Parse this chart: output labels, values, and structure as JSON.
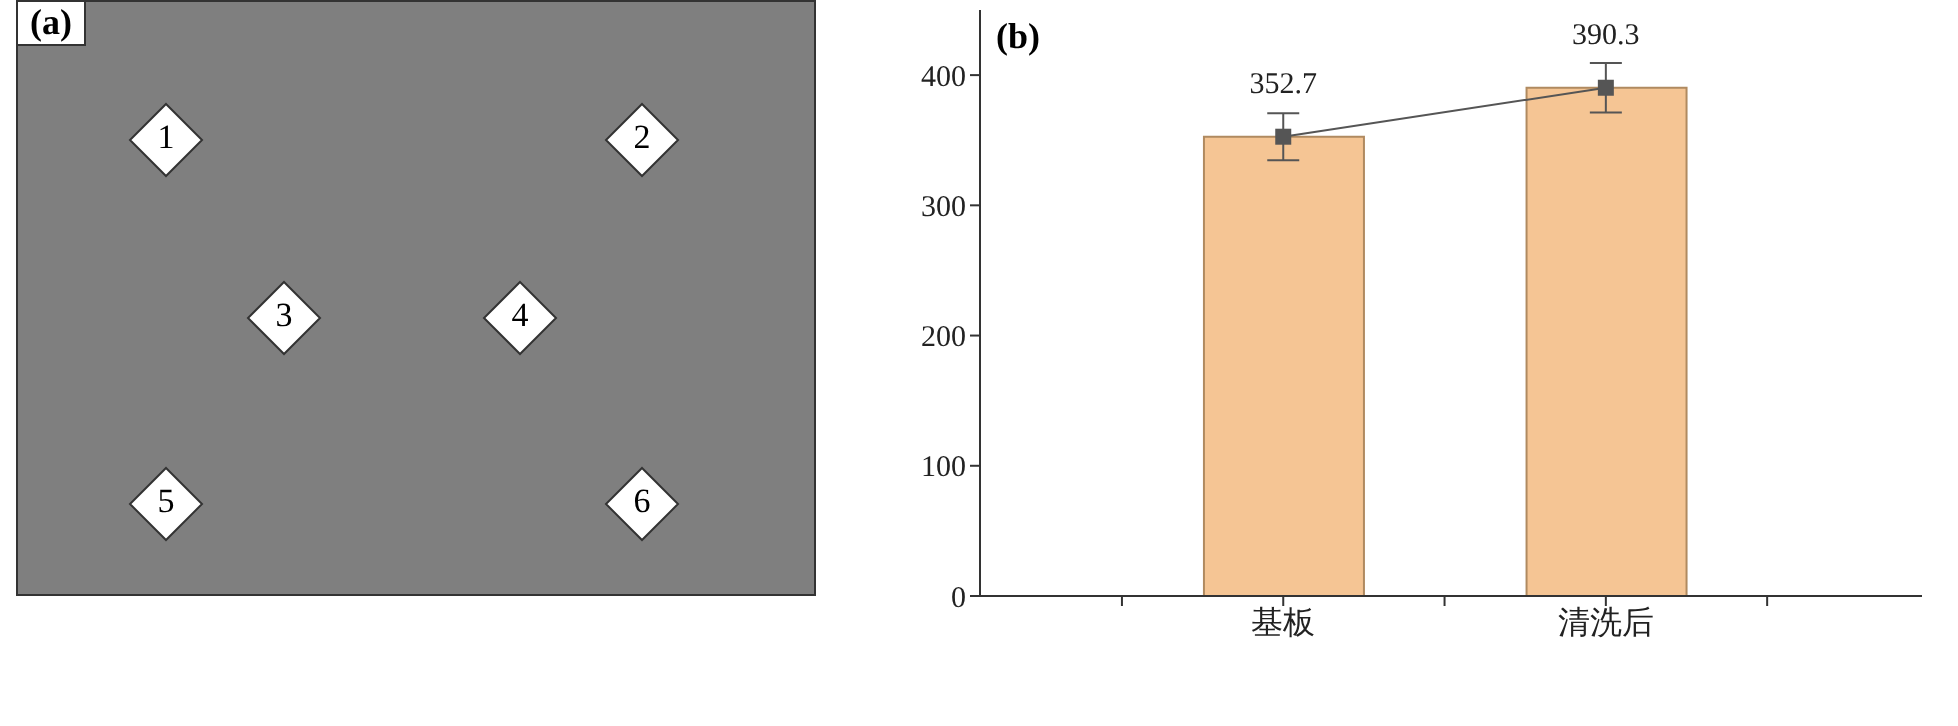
{
  "chart_data": [
    {
      "type": "other",
      "title": "(a)",
      "annotations": [
        "1",
        "2",
        "3",
        "4",
        "5",
        "6"
      ]
    },
    {
      "type": "bar",
      "title": "(b)",
      "categories": [
        "基板",
        "清洗后"
      ],
      "ylim": [
        0,
        450
      ],
      "yticks": [
        0,
        100,
        200,
        300,
        400
      ],
      "series": [
        {
          "type": "bar",
          "color": "#f5c594",
          "values": [
            352.7,
            390.3
          ]
        },
        {
          "type": "line",
          "color": "#555555",
          "values": [
            352.7,
            390.3
          ],
          "errors": [
            18,
            19
          ],
          "value_labels": [
            "352.7",
            "390.3"
          ],
          "marker": "square",
          "line_style": "solid"
        }
      ]
    }
  ]
}
